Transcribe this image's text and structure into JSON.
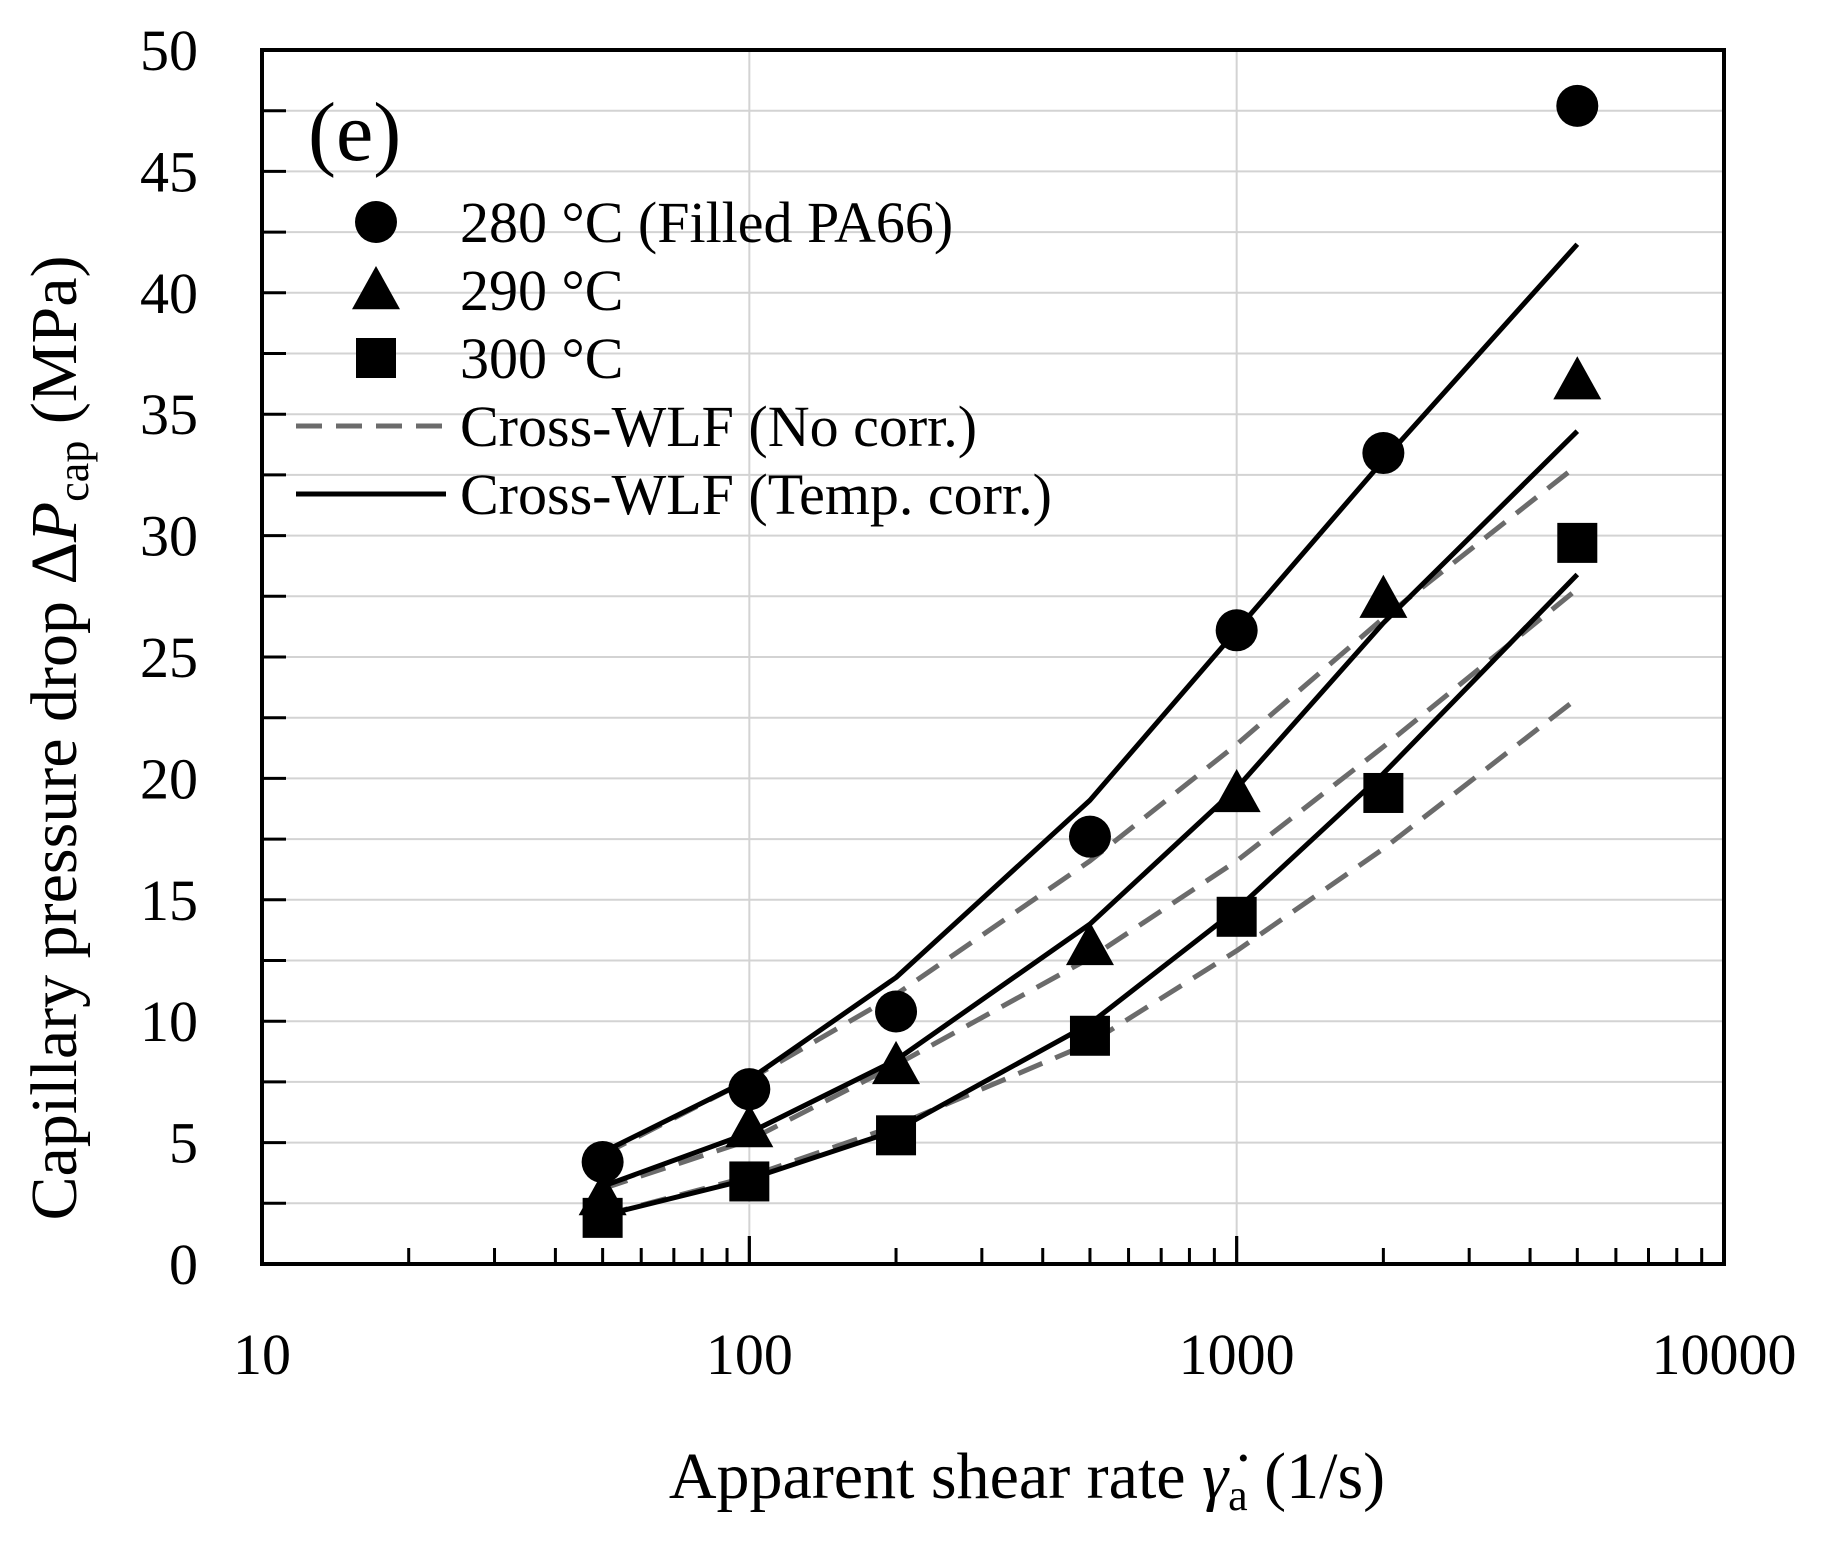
{
  "chart_data": {
    "type": "line",
    "panel_label": "(e)",
    "xlabel": {
      "prefix": "Apparent shear rate ",
      "symbol": "γ̇",
      "subscript": "a",
      "suffix": " (1/s)"
    },
    "ylabel": {
      "prefix": "Capillary pressure drop Δ",
      "symbol": "P",
      "subscript": "cap",
      "suffix": " (MPa)"
    },
    "x_scale": "log",
    "xlim": [
      10,
      10000
    ],
    "ylim": [
      0,
      50
    ],
    "x_ticks": [
      {
        "value": 10,
        "label": "10"
      },
      {
        "value": 100,
        "label": "100"
      },
      {
        "value": 1000,
        "label": "1000"
      },
      {
        "value": 10000,
        "label": "10000"
      }
    ],
    "y_ticks": [
      {
        "value": 0,
        "label": "0"
      },
      {
        "value": 5,
        "label": "5"
      },
      {
        "value": 10,
        "label": "10"
      },
      {
        "value": 15,
        "label": "15"
      },
      {
        "value": 20,
        "label": "20"
      },
      {
        "value": 25,
        "label": "25"
      },
      {
        "value": 30,
        "label": "30"
      },
      {
        "value": 35,
        "label": "35"
      },
      {
        "value": 40,
        "label": "40"
      },
      {
        "value": 45,
        "label": "45"
      },
      {
        "value": 50,
        "label": "50"
      }
    ],
    "grid": true,
    "legend_position": "top-left",
    "x": [
      50,
      100,
      200,
      500,
      1000,
      2000,
      5000
    ],
    "series": [
      {
        "name": "280 °C (Filled PA66)",
        "kind": "scatter",
        "marker": "circle",
        "values": [
          4.2,
          7.2,
          10.4,
          17.6,
          26.1,
          33.4,
          47.7
        ]
      },
      {
        "name": "290 °C",
        "kind": "scatter",
        "marker": "triangle",
        "values": [
          2.8,
          5.6,
          8.2,
          13.1,
          19.4,
          27.4,
          36.4
        ]
      },
      {
        "name": "300 °C",
        "kind": "scatter",
        "marker": "square",
        "values": [
          1.9,
          3.4,
          5.3,
          9.4,
          14.3,
          19.4,
          29.7
        ]
      },
      {
        "name": "Cross-WLF (No corr.) 280 °C",
        "kind": "line",
        "style": "dashed",
        "values": [
          4.5,
          7.6,
          11.1,
          16.6,
          21.4,
          26.6,
          32.9
        ]
      },
      {
        "name": "Cross-WLF (No corr.) 290 °C",
        "kind": "line",
        "style": "dashed",
        "values": [
          3.1,
          5.1,
          8.2,
          12.6,
          16.6,
          21.3,
          27.8
        ]
      },
      {
        "name": "Cross-WLF (No corr.) 300 °C",
        "kind": "line",
        "style": "dashed",
        "values": [
          2.0,
          3.6,
          5.7,
          9.1,
          12.9,
          17.1,
          23.3
        ]
      },
      {
        "name": "Cross-WLF (Temp. corr.) 280 °C",
        "kind": "line",
        "style": "solid",
        "values": [
          4.6,
          7.6,
          11.8,
          19.1,
          26.1,
          33.1,
          42.0
        ]
      },
      {
        "name": "Cross-WLF (Temp. corr.) 290 °C",
        "kind": "line",
        "style": "solid",
        "values": [
          3.2,
          5.4,
          8.4,
          14.0,
          19.6,
          26.4,
          34.3
        ]
      },
      {
        "name": "Cross-WLF (Temp. corr.) 300 °C",
        "kind": "line",
        "style": "solid",
        "values": [
          2.0,
          3.5,
          5.5,
          9.9,
          14.6,
          20.2,
          28.4
        ]
      }
    ],
    "legend": [
      {
        "label": "280 °C (Filled PA66)",
        "symbol": "circle"
      },
      {
        "label": "290 °C",
        "symbol": "triangle"
      },
      {
        "label": "300 °C",
        "symbol": "square"
      },
      {
        "label": "Cross-WLF (No corr.)",
        "symbol": "dashed-line"
      },
      {
        "label": "Cross-WLF (Temp. corr.)",
        "symbol": "solid-line"
      }
    ],
    "colors": {
      "marker": "#000000",
      "solid_line": "#000000",
      "dashed_line": "#6b6b6b",
      "grid": "#d3d3d3",
      "axis": "#000000"
    }
  }
}
